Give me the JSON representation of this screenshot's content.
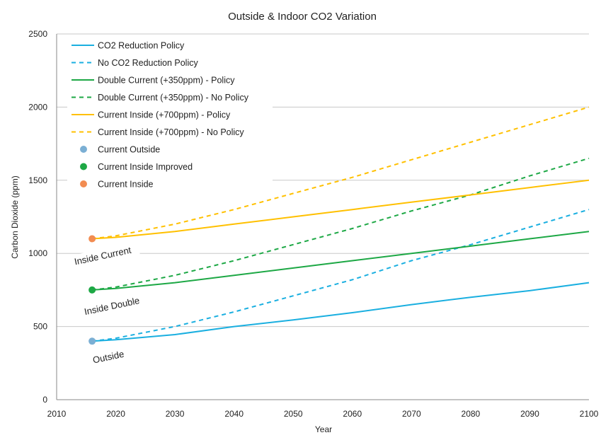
{
  "chart_data": {
    "type": "line",
    "title": "Outside & Indoor CO2 Variation",
    "xlabel": "Year",
    "ylabel": "Carbon Dioxide (ppm)",
    "xlim": [
      2010,
      2100
    ],
    "ylim": [
      0,
      2500
    ],
    "x_ticks": [
      2010,
      2020,
      2030,
      2040,
      2050,
      2060,
      2070,
      2080,
      2090,
      2100
    ],
    "y_ticks": [
      0,
      500,
      1000,
      1500,
      2000,
      2500
    ],
    "grid": "horizontal",
    "legend": "top-left",
    "series": [
      {
        "name": "CO2 Reduction Policy",
        "color": "#1AAFE0",
        "style": "solid",
        "x": [
          2016,
          2020,
          2030,
          2040,
          2050,
          2060,
          2070,
          2080,
          2090,
          2100
        ],
        "y": [
          400,
          410,
          445,
          500,
          545,
          595,
          650,
          700,
          745,
          800
        ]
      },
      {
        "name": "No CO2 Reduction Policy",
        "color": "#1AAFE0",
        "style": "dashed",
        "x": [
          2016,
          2020,
          2030,
          2040,
          2050,
          2060,
          2070,
          2080,
          2090,
          2100
        ],
        "y": [
          400,
          420,
          500,
          600,
          710,
          820,
          950,
          1060,
          1180,
          1300
        ]
      },
      {
        "name": "Double Current (+350ppm) - Policy",
        "color": "#1DA845",
        "style": "solid",
        "x": [
          2016,
          2020,
          2030,
          2040,
          2050,
          2060,
          2070,
          2080,
          2090,
          2100
        ],
        "y": [
          750,
          760,
          800,
          850,
          900,
          950,
          1000,
          1050,
          1100,
          1150
        ]
      },
      {
        "name": "Double Current (+350ppm) - No Policy",
        "color": "#1DA845",
        "style": "dashed",
        "x": [
          2016,
          2020,
          2030,
          2040,
          2050,
          2060,
          2070,
          2080,
          2090,
          2100
        ],
        "y": [
          750,
          770,
          850,
          950,
          1060,
          1170,
          1290,
          1400,
          1530,
          1650
        ]
      },
      {
        "name": "Current Inside (+700ppm) - Policy",
        "color": "#FFC000",
        "style": "solid",
        "x": [
          2016,
          2020,
          2030,
          2040,
          2050,
          2060,
          2070,
          2080,
          2090,
          2100
        ],
        "y": [
          1100,
          1110,
          1150,
          1200,
          1250,
          1300,
          1350,
          1400,
          1450,
          1500
        ]
      },
      {
        "name": "Current Inside (+700ppm) - No Policy",
        "color": "#FFC000",
        "style": "dashed",
        "x": [
          2016,
          2020,
          2030,
          2040,
          2050,
          2060,
          2070,
          2080,
          2090,
          2100
        ],
        "y": [
          1100,
          1120,
          1200,
          1300,
          1410,
          1520,
          1640,
          1760,
          1880,
          2000
        ]
      }
    ],
    "points": [
      {
        "name": "Current Outside",
        "color": "#7BAFD4",
        "x": 2016,
        "y": 400
      },
      {
        "name": "Current Inside Improved",
        "color": "#1DA845",
        "x": 2016,
        "y": 750
      },
      {
        "name": "Current Inside",
        "color": "#F28C51",
        "x": 2016,
        "y": 1100
      }
    ],
    "annotations": [
      {
        "text": "Inside Current"
      },
      {
        "text": "Inside Double"
      },
      {
        "text": "Outside"
      }
    ]
  }
}
